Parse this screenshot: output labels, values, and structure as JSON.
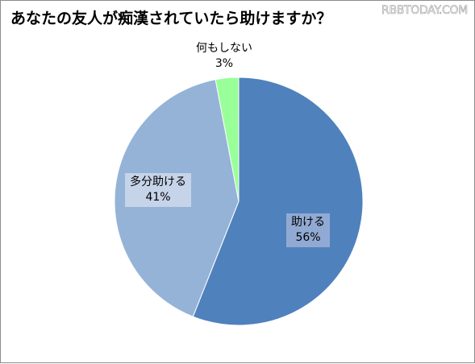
{
  "chart_data": {
    "type": "pie",
    "title": "あなたの友人が痴漢されていたら助けますか？",
    "watermark": "RBBTODAY.COM",
    "categories": [
      "助ける",
      "多分助ける",
      "何もしない"
    ],
    "values": [
      56,
      41,
      3
    ],
    "value_labels": [
      "56%",
      "41%",
      "3%"
    ],
    "colors": [
      "#4f81bd",
      "#95b3d7",
      "#99ff99"
    ],
    "start_angle_deg": 0,
    "direction": "clockwise"
  }
}
